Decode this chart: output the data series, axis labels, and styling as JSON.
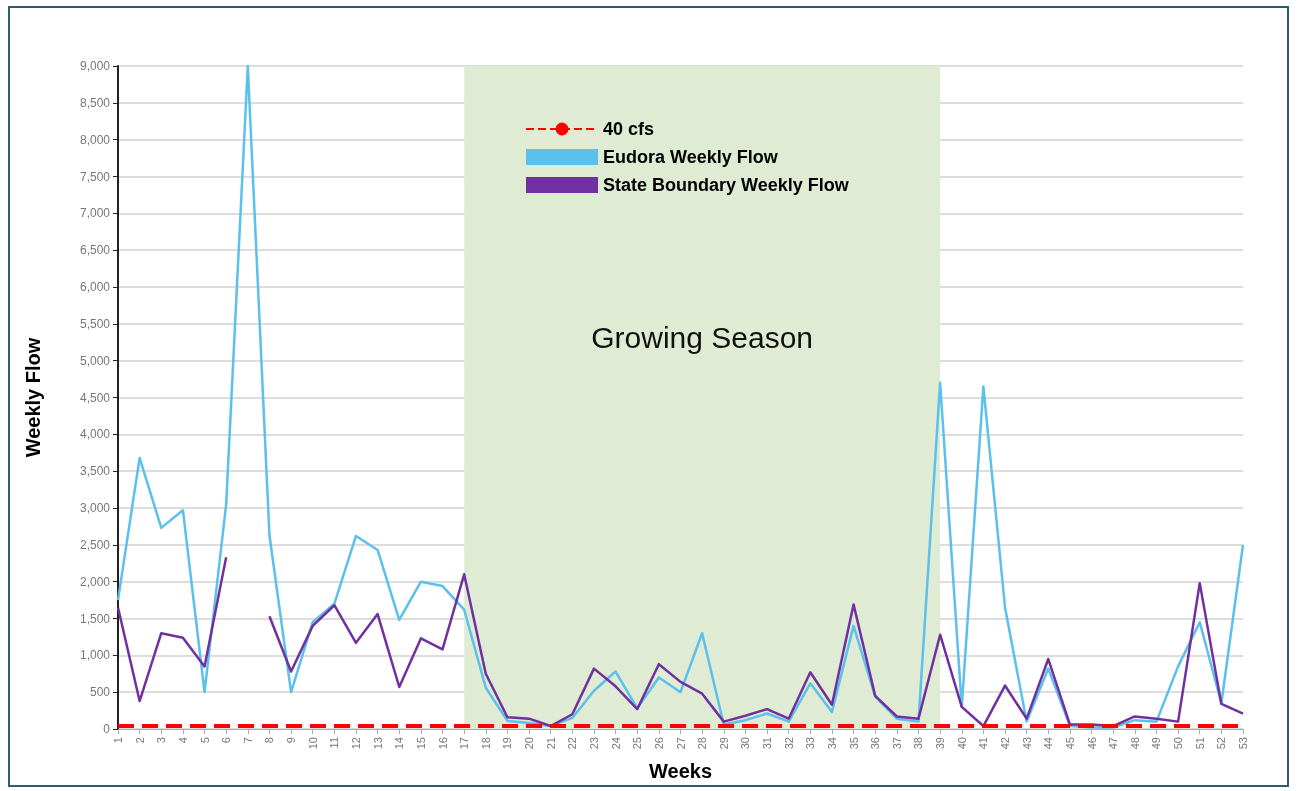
{
  "chart_data": {
    "type": "line",
    "xlabel": "Weeks",
    "ylabel": "Weekly Flow",
    "categories": [
      "1",
      "2",
      "3",
      "4",
      "5",
      "6",
      "7",
      "8",
      "9",
      "10",
      "11",
      "12",
      "13",
      "14",
      "15",
      "16",
      "17",
      "18",
      "19",
      "20",
      "21",
      "22",
      "23",
      "24",
      "25",
      "26",
      "27",
      "28",
      "29",
      "30",
      "31",
      "32",
      "33",
      "34",
      "35",
      "36",
      "37",
      "38",
      "39",
      "40",
      "41",
      "42",
      "43",
      "44",
      "45",
      "46",
      "47",
      "48",
      "49",
      "50",
      "51",
      "52",
      "53"
    ],
    "series": [
      {
        "name": "Eudora Weekly Flow",
        "color": "#5bc0eb",
        "values": [
          1750,
          3680,
          2730,
          2970,
          500,
          3050,
          9000,
          2630,
          500,
          1450,
          1700,
          2620,
          2430,
          1480,
          2000,
          1940,
          1620,
          560,
          110,
          80,
          40,
          150,
          520,
          780,
          280,
          700,
          500,
          1300,
          60,
          120,
          210,
          100,
          620,
          230,
          1400,
          440,
          140,
          100,
          4700,
          300,
          4650,
          1650,
          100,
          820,
          40,
          20,
          20,
          120,
          100,
          850,
          1450,
          350,
          2500
        ]
      },
      {
        "name": "State Boundary Weekly Flow",
        "color": "#7030a0",
        "values": [
          1650,
          380,
          1300,
          1240,
          850,
          2330,
          null,
          1530,
          780,
          1400,
          1680,
          1170,
          1560,
          570,
          1230,
          1080,
          2100,
          750,
          160,
          140,
          40,
          200,
          820,
          580,
          270,
          880,
          640,
          480,
          100,
          180,
          270,
          140,
          770,
          330,
          1690,
          450,
          170,
          140,
          1280,
          300,
          40,
          590,
          140,
          950,
          60,
          60,
          40,
          170,
          140,
          100,
          1980,
          340,
          210
        ]
      }
    ],
    "ylim": [
      0,
      9000
    ],
    "yticks": [
      0,
      500,
      {
        "value": 1000,
        "label": "1,000"
      },
      {
        "value": 1500,
        "label": "1,500"
      },
      {
        "value": 2000,
        "label": "2,000"
      },
      {
        "value": 2500,
        "label": "2,500"
      },
      {
        "value": 3000,
        "label": "3,000"
      },
      {
        "value": 3500,
        "label": "3,500"
      },
      {
        "value": 4000,
        "label": "4,000"
      },
      {
        "value": 4500,
        "label": "4,500"
      },
      {
        "value": 5000,
        "label": "5,000"
      },
      {
        "value": 5500,
        "label": "5,500"
      },
      {
        "value": 6000,
        "label": "6,000"
      },
      {
        "value": 6500,
        "label": "6,500"
      },
      {
        "value": 7000,
        "label": "7,000"
      },
      {
        "value": 7500,
        "label": "7,500"
      },
      {
        "value": 8000,
        "label": "8,000"
      },
      {
        "value": 8500,
        "label": "8,500"
      },
      {
        "value": 9000,
        "label": "9,000"
      }
    ],
    "ref_lines": [
      {
        "axis": "y",
        "value": 40,
        "label": "40 cfs",
        "color": "#ff0000",
        "line_style": "dashed"
      }
    ],
    "bands": [
      {
        "axis": "x",
        "from": "17",
        "to": "39",
        "label": "Growing Season",
        "color": "#dfebd3"
      }
    ],
    "grid": "y",
    "legend": "top",
    "marker": "none",
    "line_style": "solid"
  }
}
